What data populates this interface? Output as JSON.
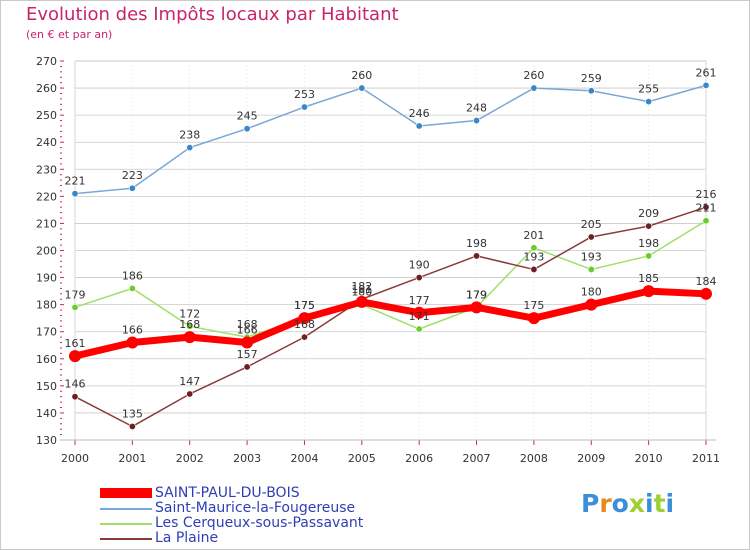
{
  "header": {
    "title": "Evolution des Impôts locaux par Habitant",
    "subtitle": "(en € et par an)"
  },
  "colors": {
    "title": "#c8246a",
    "legend_text": "#2e3fb4",
    "grid": "#c8c8c8",
    "axis_text": "#333333",
    "tick_marks": "#c8246a"
  },
  "logo": {
    "text": "Proxiti",
    "letter_colors": [
      "#3a8fd8",
      "#e8891c",
      "#3a8fd8",
      "#9fcf30",
      "#3a8fd8",
      "#9fcf30",
      "#3a8fd8"
    ]
  },
  "chart_data": {
    "type": "line",
    "title": "Evolution des Impôts locaux par Habitant",
    "subtitle": "(en € et par an)",
    "xlabel": "",
    "ylabel": "",
    "categories": [
      "2000",
      "2001",
      "2002",
      "2003",
      "2004",
      "2005",
      "2006",
      "2007",
      "2008",
      "2009",
      "2010",
      "2011"
    ],
    "ylim": [
      130,
      270
    ],
    "yticks": [
      130,
      140,
      150,
      160,
      170,
      180,
      190,
      200,
      210,
      220,
      230,
      240,
      250,
      260,
      270
    ],
    "grid": "horizontal",
    "legend_position": "bottom-left",
    "series": [
      {
        "name": "SAINT-PAUL-DU-BOIS",
        "color": "#ff0000",
        "marker_color": "#ff0000",
        "emphasis": "thick",
        "values": [
          161,
          166,
          168,
          166,
          175,
          181,
          177,
          179,
          175,
          180,
          185,
          184
        ],
        "labels": [
          "161",
          "166",
          "168",
          "166",
          "175",
          "181",
          "177",
          "179",
          "175",
          "180",
          "185",
          "184"
        ]
      },
      {
        "name": "Saint-Maurice-la-Fougereuse",
        "color": "#7ba7d6",
        "marker_color": "#3a86c8",
        "emphasis": "thin",
        "values": [
          221,
          223,
          238,
          245,
          253,
          260,
          246,
          248,
          260,
          259,
          255,
          261
        ],
        "labels": [
          "221",
          "223",
          "238",
          "245",
          "253",
          "260",
          "246",
          "248",
          "260",
          "259",
          "255",
          "261"
        ]
      },
      {
        "name": "Les Cerqueux-sous-Passavant",
        "color": "#9ee06a",
        "marker_color": "#6ccc2c",
        "emphasis": "thin",
        "values": [
          179,
          186,
          172,
          168,
          175,
          180,
          171,
          179,
          201,
          193,
          198,
          211
        ],
        "labels": [
          "179",
          "186",
          "172",
          "168",
          "175",
          "180",
          "171",
          "179",
          "201",
          "193",
          "198",
          "211"
        ]
      },
      {
        "name": "La Plaine",
        "color": "#8b3a3a",
        "marker_color": "#6e1f1f",
        "emphasis": "thin",
        "values": [
          146,
          135,
          147,
          157,
          168,
          182,
          190,
          198,
          193,
          205,
          209,
          216
        ],
        "labels": [
          "146",
          "135",
          "147",
          "157",
          "168",
          "182",
          "190",
          "198",
          "193",
          "205",
          "209",
          "216"
        ]
      }
    ]
  }
}
